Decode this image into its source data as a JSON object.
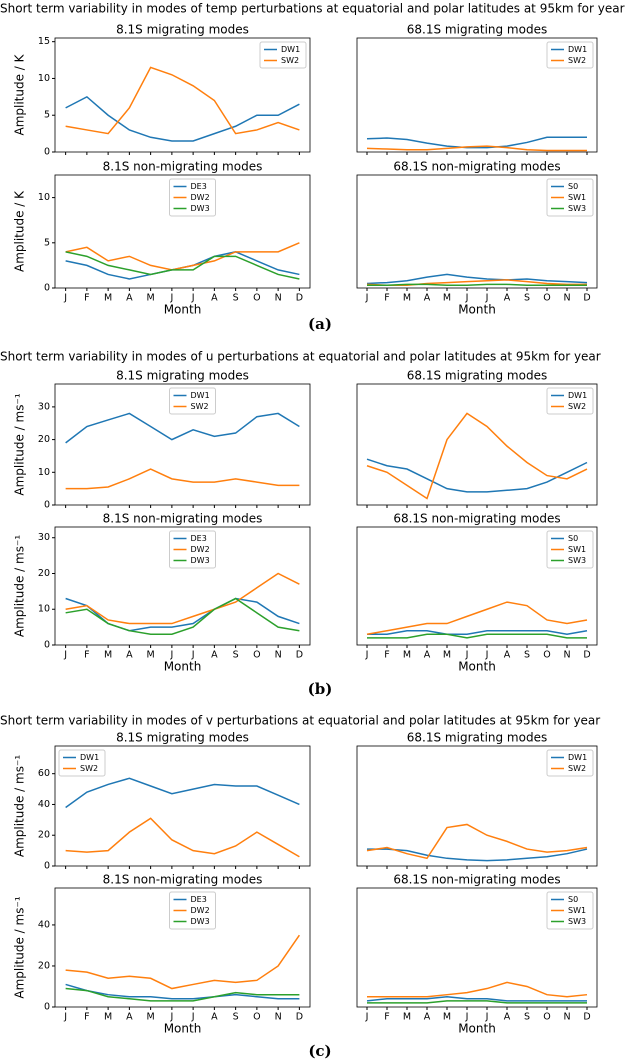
{
  "panels": [
    {
      "title": "Short term variability in modes of temp perturbations at equatorial and polar latitudes at 95km for year",
      "label": "(a)"
    },
    {
      "title": "Short term variability in modes of u perturbations at equatorial and polar latitudes at 95km for year",
      "label": "(b)"
    },
    {
      "title": "Short term variability in modes of v perturbations at equatorial and polar latitudes at 95km for year",
      "label": "(c)"
    }
  ],
  "chart_data": [
    {
      "type": "line",
      "title": "8.1S migrating modes",
      "ylabel": "Amplitude / K",
      "categories": [
        "J",
        "F",
        "M",
        "A",
        "M",
        "J",
        "J",
        "A",
        "S",
        "O",
        "N",
        "D"
      ],
      "ylim": [
        0,
        15.5
      ],
      "yticks": [
        0,
        5,
        10,
        15
      ],
      "legend": "upper right",
      "series": [
        {
          "name": "DW1",
          "color": "#1f77b4",
          "values": [
            6,
            7.5,
            5,
            3,
            2,
            1.5,
            1.5,
            2.5,
            3.5,
            5,
            5,
            6.5
          ]
        },
        {
          "name": "SW2",
          "color": "#ff7f0e",
          "values": [
            3.5,
            3,
            2.5,
            6,
            11.5,
            10.5,
            9,
            7,
            2.5,
            3,
            4,
            3
          ]
        }
      ]
    },
    {
      "type": "line",
      "title": "68.1S migrating modes",
      "categories": [
        "J",
        "F",
        "M",
        "A",
        "M",
        "J",
        "J",
        "A",
        "S",
        "O",
        "N",
        "D"
      ],
      "ylim": [
        0,
        15.5
      ],
      "legend": "upper right",
      "series": [
        {
          "name": "DW1",
          "color": "#1f77b4",
          "values": [
            1.8,
            1.9,
            1.7,
            1.2,
            0.8,
            0.6,
            0.6,
            0.8,
            1.3,
            2,
            2,
            2
          ]
        },
        {
          "name": "SW2",
          "color": "#ff7f0e",
          "values": [
            0.5,
            0.4,
            0.3,
            0.3,
            0.5,
            0.7,
            0.8,
            0.6,
            0.3,
            0.2,
            0.2,
            0.2
          ]
        }
      ]
    },
    {
      "type": "line",
      "title": "8.1S non-migrating modes",
      "ylabel": "Amplitude / K",
      "xlabel": "Month",
      "categories": [
        "J",
        "F",
        "M",
        "A",
        "M",
        "J",
        "J",
        "A",
        "S",
        "O",
        "N",
        "D"
      ],
      "ylim": [
        0,
        12.5
      ],
      "yticks": [
        0,
        5,
        10
      ],
      "legend": "upper center",
      "series": [
        {
          "name": "DE3",
          "color": "#1f77b4",
          "values": [
            3,
            2.5,
            1.5,
            1,
            1.5,
            2,
            2.5,
            3.5,
            4,
            3,
            2,
            1.5
          ]
        },
        {
          "name": "DW2",
          "color": "#ff7f0e",
          "values": [
            4,
            4.5,
            3,
            3.5,
            2.5,
            2,
            2.5,
            3,
            4,
            4,
            4,
            5
          ]
        },
        {
          "name": "DW3",
          "color": "#2ca02c",
          "values": [
            4,
            3.5,
            2.5,
            2,
            1.5,
            2,
            2,
            3.5,
            3.5,
            2.5,
            1.5,
            1
          ]
        }
      ]
    },
    {
      "type": "line",
      "title": "68.1S non-migrating modes",
      "xlabel": "Month",
      "categories": [
        "J",
        "F",
        "M",
        "A",
        "M",
        "J",
        "J",
        "A",
        "S",
        "O",
        "N",
        "D"
      ],
      "ylim": [
        0,
        12.5
      ],
      "legend": "upper right",
      "series": [
        {
          "name": "S0",
          "color": "#1f77b4",
          "values": [
            0.5,
            0.6,
            0.8,
            1.2,
            1.5,
            1.2,
            1,
            0.9,
            1,
            0.8,
            0.7,
            0.6
          ]
        },
        {
          "name": "SW1",
          "color": "#ff7f0e",
          "values": [
            0.4,
            0.3,
            0.3,
            0.5,
            0.6,
            0.7,
            0.8,
            0.9,
            0.7,
            0.5,
            0.4,
            0.4
          ]
        },
        {
          "name": "SW3",
          "color": "#2ca02c",
          "values": [
            0.3,
            0.3,
            0.4,
            0.4,
            0.3,
            0.3,
            0.4,
            0.4,
            0.3,
            0.3,
            0.3,
            0.3
          ]
        }
      ]
    },
    {
      "type": "line",
      "title": "8.1S migrating modes",
      "ylabel": "Amplitude / ms⁻¹",
      "categories": [
        "J",
        "F",
        "M",
        "A",
        "M",
        "J",
        "J",
        "A",
        "S",
        "O",
        "N",
        "D"
      ],
      "ylim": [
        0,
        37
      ],
      "yticks": [
        0,
        10,
        20,
        30
      ],
      "legend": "upper center",
      "series": [
        {
          "name": "DW1",
          "color": "#1f77b4",
          "values": [
            19,
            24,
            26,
            28,
            24,
            20,
            23,
            21,
            22,
            27,
            28,
            24
          ]
        },
        {
          "name": "SW2",
          "color": "#ff7f0e",
          "values": [
            5,
            5,
            5.5,
            8,
            11,
            8,
            7,
            7,
            8,
            7,
            6,
            6
          ]
        }
      ]
    },
    {
      "type": "line",
      "title": "68.1S migrating modes",
      "categories": [
        "J",
        "F",
        "M",
        "A",
        "M",
        "J",
        "J",
        "A",
        "S",
        "O",
        "N",
        "D"
      ],
      "ylim": [
        0,
        37
      ],
      "legend": "upper right",
      "series": [
        {
          "name": "DW1",
          "color": "#1f77b4",
          "values": [
            14,
            12,
            11,
            8,
            5,
            4,
            4,
            4.5,
            5,
            7,
            10,
            13
          ]
        },
        {
          "name": "SW2",
          "color": "#ff7f0e",
          "values": [
            12,
            10,
            6,
            2,
            20,
            28,
            24,
            18,
            13,
            9,
            8,
            11
          ]
        }
      ]
    },
    {
      "type": "line",
      "title": "8.1S non-migrating modes",
      "ylabel": "Amplitude / ms⁻¹",
      "xlabel": "Month",
      "categories": [
        "J",
        "F",
        "M",
        "A",
        "M",
        "J",
        "J",
        "A",
        "S",
        "O",
        "N",
        "D"
      ],
      "ylim": [
        0,
        33
      ],
      "yticks": [
        0,
        10,
        20,
        30
      ],
      "legend": "upper center",
      "series": [
        {
          "name": "DE3",
          "color": "#1f77b4",
          "values": [
            13,
            11,
            6,
            4,
            5,
            5,
            6,
            10,
            13,
            12,
            8,
            6
          ]
        },
        {
          "name": "DW2",
          "color": "#ff7f0e",
          "values": [
            10,
            11,
            7,
            6,
            6,
            6,
            8,
            10,
            12,
            16,
            20,
            17
          ]
        },
        {
          "name": "DW3",
          "color": "#2ca02c",
          "values": [
            9,
            10,
            6,
            4,
            3,
            3,
            5,
            10,
            13,
            9,
            5,
            4
          ]
        }
      ]
    },
    {
      "type": "line",
      "title": "68.1S non-migrating modes",
      "xlabel": "Month",
      "categories": [
        "J",
        "F",
        "M",
        "A",
        "M",
        "J",
        "J",
        "A",
        "S",
        "O",
        "N",
        "D"
      ],
      "ylim": [
        0,
        33
      ],
      "legend": "upper right",
      "series": [
        {
          "name": "S0",
          "color": "#1f77b4",
          "values": [
            3,
            3,
            4,
            4,
            3,
            3,
            4,
            4,
            4,
            4,
            3,
            4
          ]
        },
        {
          "name": "SW1",
          "color": "#ff7f0e",
          "values": [
            3,
            4,
            5,
            6,
            6,
            8,
            10,
            12,
            11,
            7,
            6,
            7
          ]
        },
        {
          "name": "SW3",
          "color": "#2ca02c",
          "values": [
            2,
            2,
            2,
            3,
            3,
            2,
            3,
            3,
            3,
            3,
            2,
            2
          ]
        }
      ]
    },
    {
      "type": "line",
      "title": "8.1S migrating modes",
      "ylabel": "Amplitude / ms⁻¹",
      "categories": [
        "J",
        "F",
        "M",
        "A",
        "M",
        "J",
        "J",
        "A",
        "S",
        "O",
        "N",
        "D"
      ],
      "ylim": [
        0,
        78
      ],
      "yticks": [
        0,
        20,
        40,
        60
      ],
      "legend": "upper left",
      "series": [
        {
          "name": "DW1",
          "color": "#1f77b4",
          "values": [
            38,
            48,
            53,
            57,
            52,
            47,
            50,
            53,
            52,
            52,
            46,
            40
          ]
        },
        {
          "name": "SW2",
          "color": "#ff7f0e",
          "values": [
            10,
            9,
            10,
            22,
            31,
            17,
            10,
            8,
            13,
            22,
            14,
            6
          ]
        }
      ]
    },
    {
      "type": "line",
      "title": "68.1S migrating modes",
      "categories": [
        "J",
        "F",
        "M",
        "A",
        "M",
        "J",
        "J",
        "A",
        "S",
        "O",
        "N",
        "D"
      ],
      "ylim": [
        0,
        78
      ],
      "legend": "upper right",
      "series": [
        {
          "name": "DW1",
          "color": "#1f77b4",
          "values": [
            11,
            11,
            10,
            7,
            5,
            4,
            3.5,
            4,
            5,
            6,
            8,
            11
          ]
        },
        {
          "name": "SW2",
          "color": "#ff7f0e",
          "values": [
            10,
            12,
            8,
            5,
            25,
            27,
            20,
            16,
            11,
            9,
            10,
            12
          ]
        }
      ]
    },
    {
      "type": "line",
      "title": "8.1S non-migrating modes",
      "ylabel": "Amplitude / ms⁻¹",
      "xlabel": "Month",
      "categories": [
        "J",
        "F",
        "M",
        "A",
        "M",
        "J",
        "J",
        "A",
        "S",
        "O",
        "N",
        "D"
      ],
      "ylim": [
        0,
        58
      ],
      "yticks": [
        0,
        20,
        40
      ],
      "legend": "upper center",
      "series": [
        {
          "name": "DE3",
          "color": "#1f77b4",
          "values": [
            11,
            8,
            6,
            5,
            5,
            4,
            4,
            5,
            6,
            5,
            4,
            4
          ]
        },
        {
          "name": "DW2",
          "color": "#ff7f0e",
          "values": [
            18,
            17,
            14,
            15,
            14,
            9,
            11,
            13,
            12,
            13,
            20,
            35
          ]
        },
        {
          "name": "DW3",
          "color": "#2ca02c",
          "values": [
            9,
            8,
            5,
            4,
            3,
            3,
            3,
            5,
            7,
            6,
            6,
            6
          ]
        }
      ]
    },
    {
      "type": "line",
      "title": "68.1S non-migrating modes",
      "xlabel": "Month",
      "categories": [
        "J",
        "F",
        "M",
        "A",
        "M",
        "J",
        "J",
        "A",
        "S",
        "O",
        "N",
        "D"
      ],
      "ylim": [
        0,
        58
      ],
      "legend": "upper right",
      "series": [
        {
          "name": "S0",
          "color": "#1f77b4",
          "values": [
            3,
            4,
            4,
            4,
            5,
            4,
            4,
            3,
            3,
            3,
            3,
            3
          ]
        },
        {
          "name": "SW1",
          "color": "#ff7f0e",
          "values": [
            5,
            5,
            5,
            5,
            6,
            7,
            9,
            12,
            10,
            6,
            5,
            6
          ]
        },
        {
          "name": "SW3",
          "color": "#2ca02c",
          "values": [
            2,
            2,
            2,
            2,
            3,
            3,
            3,
            2,
            2,
            2,
            2,
            2
          ]
        }
      ]
    }
  ]
}
